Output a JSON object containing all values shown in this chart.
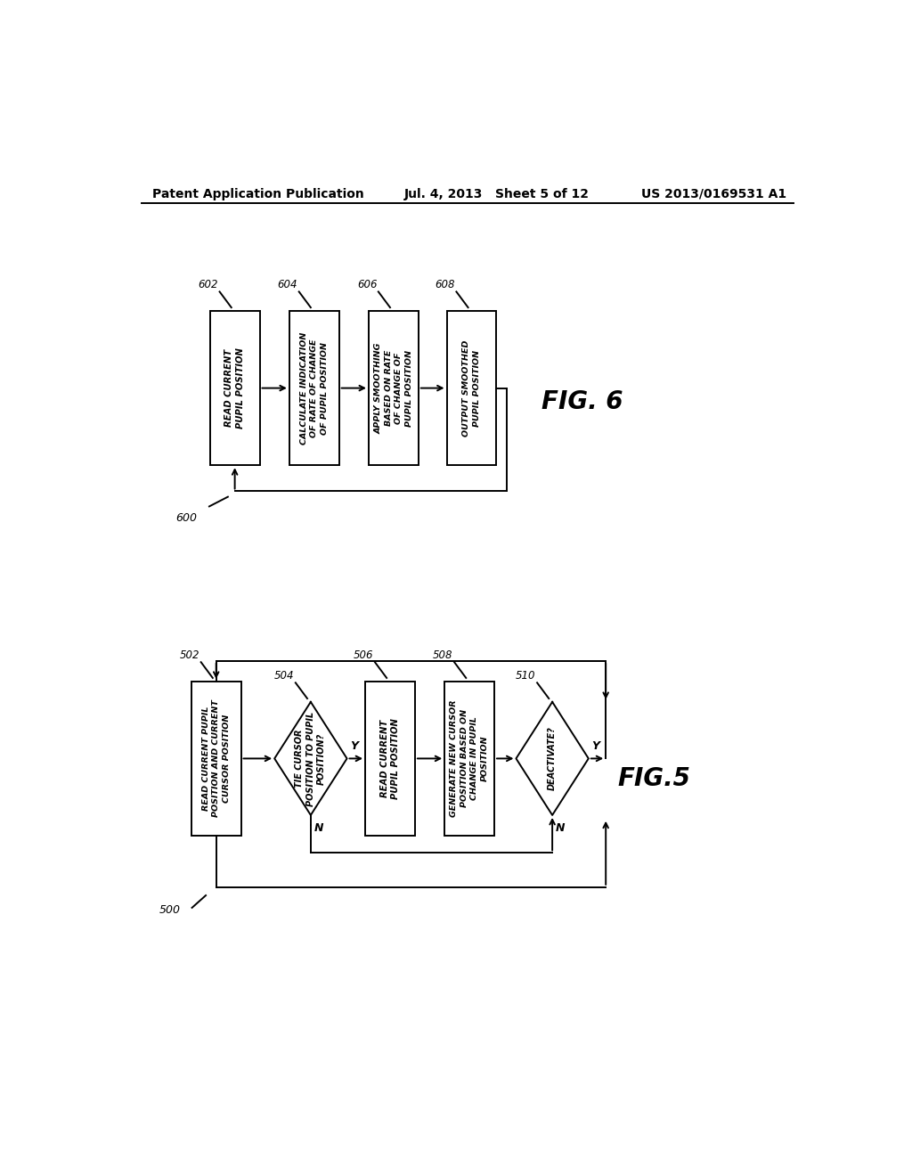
{
  "bg": "#ffffff",
  "header_left": "Patent Application Publication",
  "header_mid": "Jul. 4, 2013   Sheet 5 of 12",
  "header_right": "US 2013/0169531 A1",
  "fig6_label": "FIG. 6",
  "fig5_label": "FIG.5",
  "fig6_ref": [
    "602",
    "604",
    "606",
    "608"
  ],
  "fig6_texts": [
    "READ CURRENT\nPUPIL POSITION",
    "CALCULATE INDICATION\nOF RATE OF CHANGE\nOF PUPIL POSITION",
    "APPLY SMOOTHING\nBASED ON RATE\nOF CHANGE OF\nPUPIL POSITION",
    "OUTPUT SMOOTHED\nPUPIL POSITION"
  ],
  "fig5_box_refs": [
    "502",
    "506",
    "508"
  ],
  "fig5_box_texts": [
    "READ CURRENT PUPIL\nPOSITION AND CURRENT\nCURSOR POSITION",
    "READ CURRENT\nPUPIL POSITION",
    "GENERATE NEW CURSOR\nPOSITION BASED ON\nCHANGE IN PUPIL\nPOSITION"
  ],
  "fig5_dia_refs": [
    "504",
    "510"
  ],
  "fig5_dia_texts": [
    "TIE CURSOR\nPOSITION TO PUPIL\nPOSITION?",
    "DEACTIVATE?"
  ]
}
